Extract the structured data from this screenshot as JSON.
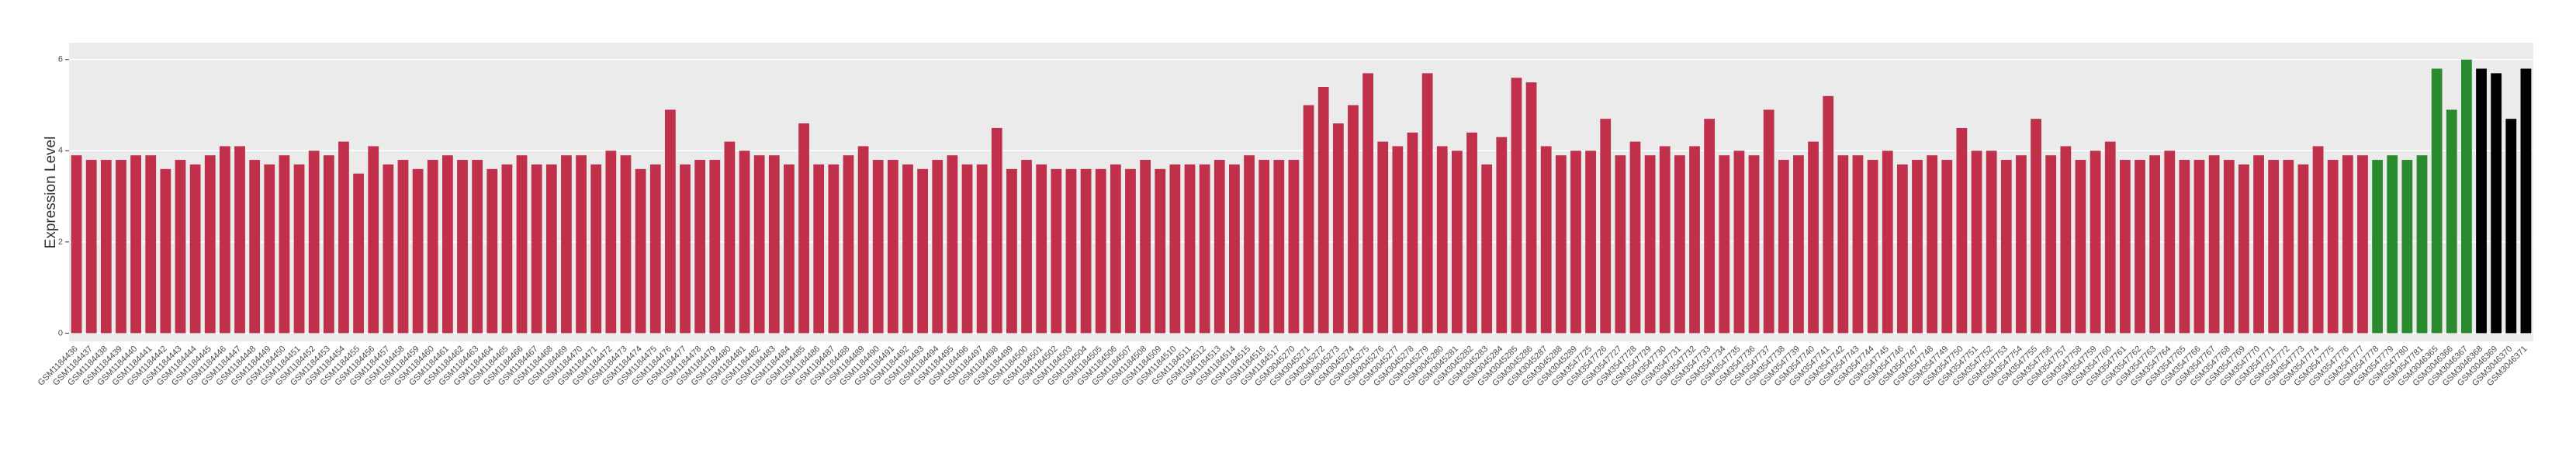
{
  "chart_data": {
    "type": "bar",
    "y_label": "Expression Level",
    "categories": [
      "GSM1184436",
      "GSM1184437",
      "GSM1184438",
      "GSM1184439",
      "GSM1184440",
      "GSM1184441",
      "GSM1184442",
      "GSM1184443",
      "GSM1184444",
      "GSM1184445",
      "GSM1184446",
      "GSM1184447",
      "GSM1184448",
      "GSM1184449",
      "GSM1184450",
      "GSM1184451",
      "GSM1184452",
      "GSM1184453",
      "GSM1184454",
      "GSM1184455",
      "GSM1184456",
      "GSM1184457",
      "GSM1184458",
      "GSM1184459",
      "GSM1184460",
      "GSM1184461",
      "GSM1184462",
      "GSM1184463",
      "GSM1184464",
      "GSM1184465",
      "GSM1184466",
      "GSM1184467",
      "GSM1184468",
      "GSM1184469",
      "GSM1184470",
      "GSM1184471",
      "GSM1184472",
      "GSM1184473",
      "GSM1184474",
      "GSM1184475",
      "GSM1184476",
      "GSM1184477",
      "GSM1184478",
      "GSM1184479",
      "GSM1184480",
      "GSM1184481",
      "GSM1184482",
      "GSM1184483",
      "GSM1184484",
      "GSM1184485",
      "GSM1184486",
      "GSM1184487",
      "GSM1184488",
      "GSM1184489",
      "GSM1184490",
      "GSM1184491",
      "GSM1184492",
      "GSM1184493",
      "GSM1184494",
      "GSM1184495",
      "GSM1184496",
      "GSM1184497",
      "GSM1184498",
      "GSM1184499",
      "GSM1184500",
      "GSM1184501",
      "GSM1184502",
      "GSM1184503",
      "GSM1184504",
      "GSM1184505",
      "GSM1184506",
      "GSM1184507",
      "GSM1184508",
      "GSM1184509",
      "GSM1184510",
      "GSM1184511",
      "GSM1184512",
      "GSM1184513",
      "GSM1184514",
      "GSM1184515",
      "GSM1184516",
      "GSM1184517",
      "GSM3045270",
      "GSM3045271",
      "GSM3045272",
      "GSM3045273",
      "GSM3045274",
      "GSM3045275",
      "GSM3045276",
      "GSM3045277",
      "GSM3045278",
      "GSM3045279",
      "GSM3045280",
      "GSM3045281",
      "GSM3045282",
      "GSM3045283",
      "GSM3045284",
      "GSM3045285",
      "GSM3045286",
      "GSM3045287",
      "GSM3045288",
      "GSM3045289",
      "GSM3547725",
      "GSM3547726",
      "GSM3547727",
      "GSM3547728",
      "GSM3547729",
      "GSM3547730",
      "GSM3547731",
      "GSM3547732",
      "GSM3547733",
      "GSM3547734",
      "GSM3547735",
      "GSM3547736",
      "GSM3547737",
      "GSM3547738",
      "GSM3547739",
      "GSM3547740",
      "GSM3547741",
      "GSM3547742",
      "GSM3547743",
      "GSM3547744",
      "GSM3547745",
      "GSM3547746",
      "GSM3547747",
      "GSM3547748",
      "GSM3547749",
      "GSM3547750",
      "GSM3547751",
      "GSM3547752",
      "GSM3547753",
      "GSM3547754",
      "GSM3547755",
      "GSM3547756",
      "GSM3547757",
      "GSM3547758",
      "GSM3547759",
      "GSM3547760",
      "GSM3547761",
      "GSM3547762",
      "GSM3547763",
      "GSM3547764",
      "GSM3547765",
      "GSM3547766",
      "GSM3547767",
      "GSM3547768",
      "GSM3547769",
      "GSM3547770",
      "GSM3547771",
      "GSM3547772",
      "GSM3547773",
      "GSM3547774",
      "GSM3547775",
      "GSM3547776",
      "GSM3547777",
      "GSM3547778",
      "GSM3547779",
      "GSM3547780",
      "GSM3547781",
      "GSM3046365",
      "GSM3046366",
      "GSM3046367",
      "GSM3046368",
      "GSM3046369",
      "GSM3046370",
      "GSM3046371"
    ],
    "values": [
      3.9,
      3.8,
      3.8,
      3.8,
      3.9,
      3.9,
      3.6,
      3.8,
      3.7,
      3.9,
      4.1,
      4.1,
      3.8,
      3.7,
      3.9,
      3.7,
      4.0,
      3.9,
      4.2,
      3.5,
      4.1,
      3.7,
      3.8,
      3.6,
      3.8,
      3.9,
      3.8,
      3.8,
      3.6,
      3.7,
      3.9,
      3.7,
      3.7,
      3.9,
      3.9,
      3.7,
      4.0,
      3.9,
      3.6,
      3.7,
      4.9,
      3.7,
      3.8,
      3.8,
      4.2,
      4.0,
      3.9,
      3.9,
      3.7,
      4.6,
      3.7,
      3.7,
      3.9,
      4.1,
      3.8,
      3.8,
      3.7,
      3.6,
      3.8,
      3.9,
      3.7,
      3.7,
      4.5,
      3.6,
      3.8,
      3.7,
      3.6,
      3.6,
      3.6,
      3.6,
      3.7,
      3.6,
      3.8,
      3.6,
      3.7,
      3.7,
      3.7,
      3.8,
      3.7,
      3.9,
      3.8,
      3.8,
      3.8,
      5.0,
      5.4,
      4.6,
      5.0,
      5.7,
      4.2,
      4.1,
      4.4,
      5.7,
      4.1,
      4.0,
      4.4,
      3.7,
      4.3,
      5.6,
      5.5,
      4.1,
      3.9,
      4.0,
      4.0,
      4.7,
      3.9,
      4.2,
      3.9,
      4.1,
      3.9,
      4.1,
      4.7,
      3.9,
      4.0,
      3.9,
      4.9,
      3.8,
      3.9,
      4.2,
      5.2,
      3.9,
      3.9,
      3.8,
      4.0,
      3.7,
      3.8,
      3.9,
      3.8,
      4.5,
      4.0,
      4.0,
      3.8,
      3.9,
      4.7,
      3.9,
      4.1,
      3.8,
      4.0,
      4.2,
      3.8,
      3.8,
      3.9,
      4.0,
      3.8,
      3.8,
      3.9,
      3.8,
      3.7,
      3.9,
      3.8,
      3.8,
      3.7,
      4.1,
      3.8,
      3.9,
      3.9,
      3.8,
      3.9,
      3.8,
      3.9,
      5.8,
      4.9,
      6.0,
      5.8,
      5.7,
      4.7,
      5.8
    ],
    "colors": [
      "#c0304a",
      "#c0304a",
      "#c0304a",
      "#c0304a",
      "#c0304a",
      "#c0304a",
      "#c0304a",
      "#c0304a",
      "#c0304a",
      "#c0304a",
      "#c0304a",
      "#c0304a",
      "#c0304a",
      "#c0304a",
      "#c0304a",
      "#c0304a",
      "#c0304a",
      "#c0304a",
      "#c0304a",
      "#c0304a",
      "#c0304a",
      "#c0304a",
      "#c0304a",
      "#c0304a",
      "#c0304a",
      "#c0304a",
      "#c0304a",
      "#c0304a",
      "#c0304a",
      "#c0304a",
      "#c0304a",
      "#c0304a",
      "#c0304a",
      "#c0304a",
      "#c0304a",
      "#c0304a",
      "#c0304a",
      "#c0304a",
      "#c0304a",
      "#c0304a",
      "#c0304a",
      "#c0304a",
      "#c0304a",
      "#c0304a",
      "#c0304a",
      "#c0304a",
      "#c0304a",
      "#c0304a",
      "#c0304a",
      "#c0304a",
      "#c0304a",
      "#c0304a",
      "#c0304a",
      "#c0304a",
      "#c0304a",
      "#c0304a",
      "#c0304a",
      "#c0304a",
      "#c0304a",
      "#c0304a",
      "#c0304a",
      "#c0304a",
      "#c0304a",
      "#c0304a",
      "#c0304a",
      "#c0304a",
      "#c0304a",
      "#c0304a",
      "#c0304a",
      "#c0304a",
      "#c0304a",
      "#c0304a",
      "#c0304a",
      "#c0304a",
      "#c0304a",
      "#c0304a",
      "#c0304a",
      "#c0304a",
      "#c0304a",
      "#c0304a",
      "#c0304a",
      "#c0304a",
      "#c0304a",
      "#c0304a",
      "#c0304a",
      "#c0304a",
      "#c0304a",
      "#c0304a",
      "#c0304a",
      "#c0304a",
      "#c0304a",
      "#c0304a",
      "#c0304a",
      "#c0304a",
      "#c0304a",
      "#c0304a",
      "#c0304a",
      "#c0304a",
      "#c0304a",
      "#c0304a",
      "#c0304a",
      "#c0304a",
      "#c0304a",
      "#c0304a",
      "#c0304a",
      "#c0304a",
      "#c0304a",
      "#c0304a",
      "#c0304a",
      "#c0304a",
      "#c0304a",
      "#c0304a",
      "#c0304a",
      "#c0304a",
      "#c0304a",
      "#c0304a",
      "#c0304a",
      "#c0304a",
      "#c0304a",
      "#c0304a",
      "#c0304a",
      "#c0304a",
      "#c0304a",
      "#c0304a",
      "#c0304a",
      "#c0304a",
      "#c0304a",
      "#c0304a",
      "#c0304a",
      "#c0304a",
      "#c0304a",
      "#c0304a",
      "#c0304a",
      "#c0304a",
      "#c0304a",
      "#c0304a",
      "#c0304a",
      "#c0304a",
      "#c0304a",
      "#c0304a",
      "#c0304a",
      "#c0304a",
      "#c0304a",
      "#c0304a",
      "#c0304a",
      "#c0304a",
      "#c0304a",
      "#c0304a",
      "#c0304a",
      "#c0304a",
      "#c0304a",
      "#c0304a",
      "#c0304a",
      "#c0304a",
      "#c0304a",
      "#2a8a2e",
      "#2a8a2e",
      "#2a8a2e",
      "#2a8a2e",
      "#2a8a2e",
      "#2a8a2e",
      "#2a8a2e"
    ],
    "ylim": [
      -0.18,
      6.37
    ],
    "yticks": [
      0,
      2,
      4,
      6
    ],
    "grid": true,
    "background": "#ebebeb"
  }
}
